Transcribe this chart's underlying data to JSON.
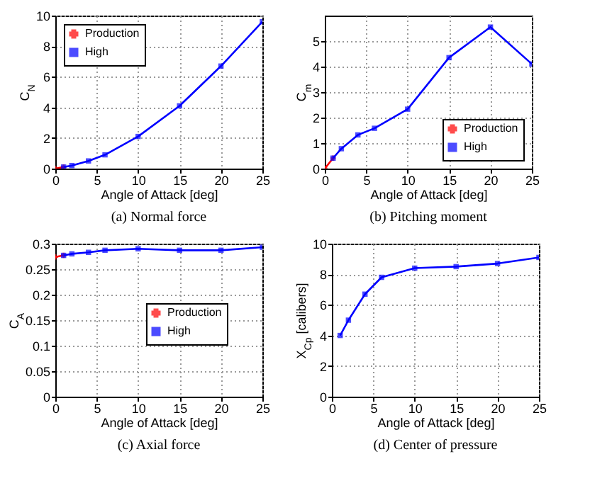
{
  "chart_data": [
    {
      "type": "line",
      "title": "(a) Normal force",
      "xlabel": "Angle of Attack [deg]",
      "ylabel": "C$_{N}$",
      "xlim": [
        0,
        25
      ],
      "xticks": [
        0,
        5,
        10,
        15,
        20,
        25
      ],
      "ylim": [
        0,
        10
      ],
      "yticks": [
        0,
        2,
        4,
        6,
        8,
        10
      ],
      "grid": true,
      "legend": "top left",
      "series": [
        {
          "name": "Production",
          "color": "#ff0000",
          "marker": "cross",
          "x": [
            0,
            1
          ],
          "values": [
            0,
            0.1
          ]
        },
        {
          "name": "High",
          "color": "#0000ff",
          "marker": "square",
          "x": [
            1,
            2,
            4,
            6,
            10,
            15,
            20,
            25
          ],
          "values": [
            0.1,
            0.2,
            0.5,
            0.9,
            2.1,
            4.1,
            6.7,
            9.6
          ]
        }
      ]
    },
    {
      "type": "line",
      "title": "(b) Pitching moment",
      "xlabel": "Angle of Attack [deg]",
      "ylabel": "C$_{m}$",
      "xlim": [
        0,
        25
      ],
      "xticks": [
        0,
        5,
        10,
        15,
        20,
        25
      ],
      "ylim": [
        0,
        6
      ],
      "yticks": [
        0,
        1,
        2,
        3,
        4,
        5
      ],
      "grid": true,
      "legend": "bottom right",
      "series": [
        {
          "name": "Production",
          "color": "#ff0000",
          "marker": "cross",
          "x": [
            0,
            1
          ],
          "values": [
            0,
            0.41
          ]
        },
        {
          "name": "High",
          "color": "#0000ff",
          "marker": "square",
          "x": [
            1,
            2,
            4,
            6,
            10,
            15,
            20,
            25
          ],
          "values": [
            0.41,
            0.78,
            1.32,
            1.58,
            2.33,
            4.35,
            5.55,
            4.1
          ]
        }
      ]
    },
    {
      "type": "line",
      "title": "(c) Axial force",
      "xlabel": "Angle of Attack [deg]",
      "ylabel": "C$_{A}$",
      "xlim": [
        0,
        25
      ],
      "xticks": [
        0,
        5,
        10,
        15,
        20,
        25
      ],
      "ylim": [
        0,
        0.3
      ],
      "yticks": [
        0,
        0.05,
        0.1,
        0.15,
        0.2,
        0.25,
        0.3
      ],
      "grid": true,
      "legend": "right",
      "series": [
        {
          "name": "Production",
          "color": "#ff0000",
          "marker": "cross",
          "x": [
            0,
            1
          ],
          "values": [
            0.274,
            0.277
          ]
        },
        {
          "name": "High",
          "color": "#0000ff",
          "marker": "square",
          "x": [
            1,
            2,
            4,
            6,
            10,
            15,
            20,
            25
          ],
          "values": [
            0.277,
            0.28,
            0.283,
            0.287,
            0.29,
            0.287,
            0.287,
            0.293
          ]
        }
      ]
    },
    {
      "type": "line",
      "title": "(d) Center of pressure",
      "xlabel": "Angle of Attack [deg]",
      "ylabel": "X$_{Cp}$ [calibers]",
      "xlim": [
        0,
        25
      ],
      "xticks": [
        0,
        5,
        10,
        15,
        20,
        25
      ],
      "ylim": [
        0,
        10
      ],
      "yticks": [
        0,
        2,
        4,
        6,
        8,
        10
      ],
      "grid": true,
      "legend": "right",
      "series": [
        {
          "name": "Production",
          "color": "#ff0000",
          "marker": "cross"
        },
        {
          "name": "High",
          "color": "#0000ff",
          "marker": "square",
          "x": [
            1,
            2,
            4,
            6,
            10,
            15,
            20,
            25
          ],
          "values": [
            4.0,
            5.0,
            6.7,
            7.8,
            8.4,
            8.5,
            8.7,
            9.1
          ]
        }
      ]
    }
  ]
}
